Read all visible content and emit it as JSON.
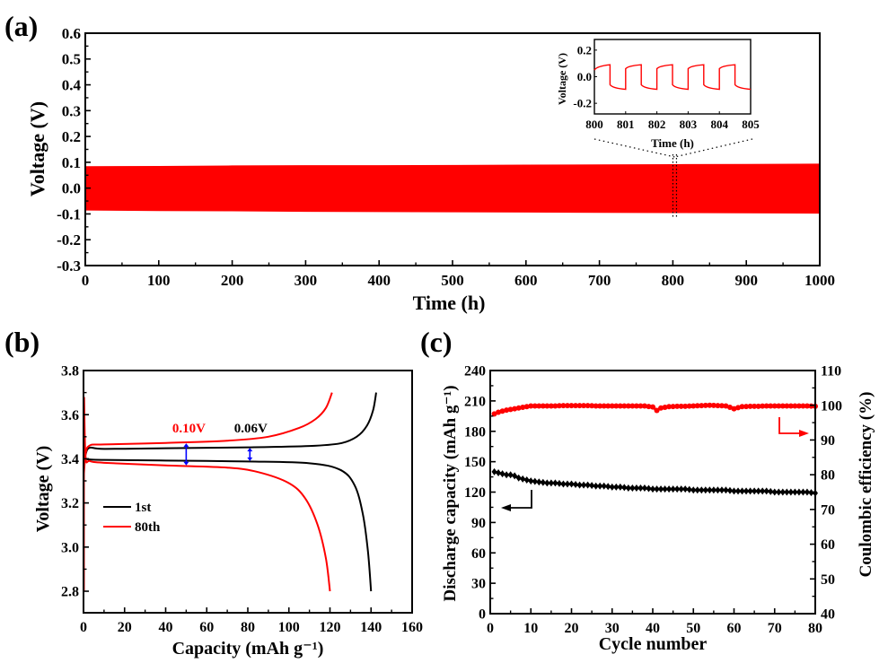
{
  "chart_data": [
    {
      "id": "a",
      "panel_label": "(a)",
      "type": "area",
      "title": "",
      "xlabel": "Time (h)",
      "ylabel": "Voltage (V)",
      "xlim": [
        0,
        1000
      ],
      "ylim": [
        -0.3,
        0.6
      ],
      "xticks": [
        "0",
        "100",
        "200",
        "300",
        "400",
        "500",
        "600",
        "700",
        "800",
        "900",
        "1000"
      ],
      "yticks": [
        "-0.3",
        "-0.2",
        "-0.1",
        "0.0",
        "0.1",
        "0.2",
        "0.3",
        "0.4",
        "0.5",
        "0.6"
      ],
      "series": [
        {
          "name": "voltage profile",
          "color": "#ff0000",
          "x": [
            0,
            100,
            200,
            300,
            400,
            500,
            600,
            700,
            800,
            900,
            1000
          ],
          "upper": [
            0.083,
            0.084,
            0.086,
            0.087,
            0.087,
            0.088,
            0.089,
            0.09,
            0.091,
            0.092,
            0.093
          ],
          "lower": [
            -0.085,
            -0.087,
            -0.088,
            -0.09,
            -0.091,
            -0.092,
            -0.093,
            -0.094,
            -0.095,
            -0.096,
            -0.097
          ]
        }
      ],
      "highlight_x": 802.5,
      "inset": {
        "type": "line",
        "xlabel": "Time (h)",
        "ylabel": "Voltage (V)",
        "xlim": [
          800,
          805
        ],
        "ylim": [
          -0.28,
          0.28
        ],
        "xticks": [
          "800",
          "801",
          "802",
          "803",
          "804",
          "805"
        ],
        "yticks": [
          "-0.2",
          "0.0",
          "0.2"
        ],
        "series": [
          {
            "name": "zoomed voltage",
            "color": "#ff0000",
            "x": [
              800.0,
              800.5,
              800.5,
              801.0,
              801.0,
              801.5,
              801.5,
              802.0,
              802.0,
              802.5,
              802.5,
              803.0,
              803.0,
              803.5,
              803.5,
              804.0,
              804.0,
              804.5,
              804.5,
              805.0
            ],
            "y": [
              0.05,
              0.09,
              -0.06,
              -0.095,
              0.06,
              0.09,
              -0.06,
              -0.095,
              0.06,
              0.09,
              -0.06,
              -0.095,
              0.06,
              0.09,
              -0.06,
              -0.095,
              0.06,
              0.09,
              -0.06,
              -0.095
            ]
          }
        ]
      }
    },
    {
      "id": "b",
      "panel_label": "(b)",
      "type": "line",
      "title": "",
      "xlabel": "Capacity (mAh g⁻¹)",
      "ylabel": "Voltage (V)",
      "xlim": [
        0,
        160
      ],
      "ylim": [
        2.7,
        3.8
      ],
      "xticks": [
        "0",
        "20",
        "40",
        "60",
        "80",
        "100",
        "120",
        "140",
        "160"
      ],
      "yticks": [
        "2.8",
        "3.0",
        "3.2",
        "3.4",
        "3.6",
        "3.8"
      ],
      "legend": {
        "placement": "center-left",
        "entries": [
          "1st",
          "80th"
        ]
      },
      "annotations": [
        {
          "text": "0.10V",
          "color": "#ff0000",
          "x": 50,
          "y1": 3.37,
          "y2": 3.47
        },
        {
          "text": "0.06V",
          "color": "#000000",
          "x": 81,
          "y1": 3.39,
          "y2": 3.45
        }
      ],
      "arrow_color": "#0000ff",
      "series": [
        {
          "name": "1st",
          "color": "#000000",
          "charge": {
            "x": [
              0,
              1,
              3,
              10,
              40,
              80,
              110,
              125,
              133,
              138,
              141,
              142.5
            ],
            "y": [
              3.38,
              3.42,
              3.45,
              3.445,
              3.448,
              3.452,
              3.458,
              3.47,
              3.5,
              3.55,
              3.62,
              3.7
            ]
          },
          "discharge": {
            "x": [
              0,
              1,
              3,
              10,
              40,
              80,
              110,
              125,
              132,
              136,
              138.5,
              140
            ],
            "y": [
              3.4,
              3.4,
              3.397,
              3.395,
              3.392,
              3.388,
              3.38,
              3.35,
              3.28,
              3.15,
              2.98,
              2.8
            ]
          }
        },
        {
          "name": "80th",
          "color": "#ff0000",
          "charge": {
            "x": [
              0,
              1,
              3,
              10,
              40,
              70,
              90,
              105,
              113,
              118,
              121
            ],
            "y": [
              3.3,
              3.42,
              3.46,
              3.465,
              3.472,
              3.482,
              3.5,
              3.54,
              3.58,
              3.63,
              3.7
            ]
          },
          "discharge": {
            "x": [
              0.3,
              1,
              3,
              10,
              40,
              70,
              85,
              100,
              108,
              114,
              118,
              120
            ],
            "y": [
              3.68,
              3.41,
              3.39,
              3.382,
              3.37,
              3.36,
              3.34,
              3.29,
              3.22,
              3.1,
              2.95,
              2.8
            ]
          }
        }
      ]
    },
    {
      "id": "c",
      "panel_label": "(c)",
      "type": "scatter",
      "title": "",
      "xlabel": "Cycle number",
      "ylabel": "Discharge capacity (mAh g⁻¹)",
      "ylabel_right": "Coulombic efficiency (%)",
      "xlim": [
        0,
        80
      ],
      "ylim": [
        0,
        240
      ],
      "ylim_right": [
        40,
        110
      ],
      "xticks": [
        "0",
        "10",
        "20",
        "30",
        "40",
        "50",
        "60",
        "70",
        "80"
      ],
      "yticks": [
        "0",
        "30",
        "60",
        "90",
        "120",
        "150",
        "180",
        "210",
        "240"
      ],
      "yticks_right": [
        "40",
        "50",
        "60",
        "70",
        "80",
        "90",
        "100",
        "110"
      ],
      "series": [
        {
          "name": "Discharge capacity",
          "axis": "left",
          "color": "#000000",
          "x": [
            1,
            2,
            3,
            4,
            5,
            6,
            7,
            8,
            9,
            10,
            12,
            14,
            16,
            18,
            20,
            22,
            24,
            26,
            28,
            30,
            32,
            34,
            36,
            38,
            40,
            42,
            44,
            46,
            48,
            50,
            52,
            54,
            56,
            58,
            60,
            62,
            64,
            66,
            68,
            70,
            72,
            74,
            76,
            78,
            80
          ],
          "y": [
            140,
            139,
            138,
            137,
            137,
            136,
            134,
            133,
            132,
            131,
            130,
            129,
            129,
            128,
            128,
            127,
            127,
            126,
            126,
            125,
            125,
            124,
            124,
            124,
            123,
            123,
            123,
            123,
            123,
            122,
            122,
            122,
            122,
            122,
            121,
            121,
            121,
            121,
            121,
            120,
            120,
            120,
            120,
            120,
            119
          ]
        },
        {
          "name": "Coulombic efficiency",
          "axis": "right",
          "color": "#ff0000",
          "x": [
            1,
            2,
            3,
            4,
            5,
            6,
            7,
            8,
            9,
            10,
            12,
            14,
            16,
            18,
            20,
            22,
            24,
            26,
            28,
            30,
            32,
            34,
            36,
            38,
            40,
            41,
            42,
            44,
            46,
            48,
            50,
            52,
            54,
            56,
            58,
            60,
            62,
            64,
            66,
            68,
            70,
            72,
            74,
            76,
            78,
            80
          ],
          "y": [
            97.5,
            98.0,
            98.3,
            98.6,
            98.8,
            99.0,
            99.2,
            99.4,
            99.6,
            99.8,
            99.8,
            99.8,
            99.8,
            99.9,
            99.9,
            99.9,
            99.9,
            99.8,
            99.8,
            99.8,
            99.8,
            99.8,
            99.8,
            99.8,
            99.5,
            98.5,
            99.2,
            99.6,
            99.7,
            99.7,
            99.8,
            99.9,
            100.0,
            99.9,
            99.8,
            99.0,
            99.6,
            99.7,
            99.7,
            99.8,
            99.8,
            99.8,
            99.8,
            99.8,
            99.8,
            99.7
          ]
        }
      ],
      "axis_arrows": [
        {
          "points_to": "left",
          "color": "#000000"
        },
        {
          "points_to": "right",
          "color": "#ff0000"
        }
      ]
    }
  ]
}
